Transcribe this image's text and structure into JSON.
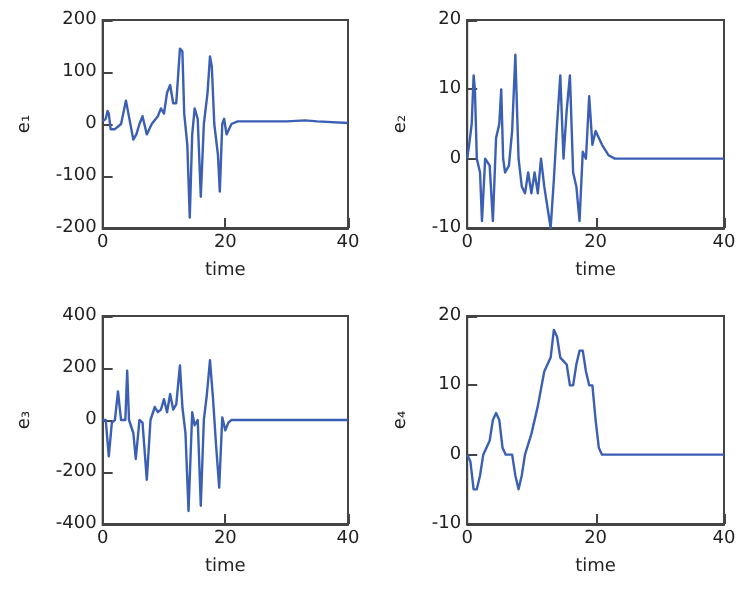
{
  "chart_data": [
    {
      "type": "line",
      "xlabel": "time",
      "ylabel": "e₁",
      "xlim": [
        0,
        40
      ],
      "xticks": [
        0,
        20,
        40
      ],
      "ylim": [
        -200,
        200
      ],
      "yticks": [
        -200,
        -100,
        0,
        100,
        200
      ],
      "marker": "none",
      "grid": false,
      "x": [
        0,
        0.5,
        0.8,
        1,
        1.3,
        2,
        3,
        3.8,
        4.2,
        5,
        5.5,
        6,
        6.5,
        7.2,
        8,
        9,
        9.5,
        10,
        10.5,
        11,
        11.5,
        12,
        12.6,
        13,
        13.3,
        13.8,
        14.2,
        14.6,
        15,
        15.5,
        16,
        16.5,
        17.1,
        17.5,
        17.8,
        18.2,
        18.8,
        19.1,
        19.5,
        19.8,
        20.2,
        20.6,
        21,
        22,
        25,
        30,
        33,
        35,
        40
      ],
      "series": [
        {
          "color": "#3a5fb5",
          "values": [
            5,
            10,
            25,
            20,
            -10,
            -10,
            0,
            45,
            20,
            -30,
            -20,
            0,
            15,
            -20,
            0,
            15,
            30,
            20,
            60,
            75,
            40,
            40,
            145,
            140,
            20,
            -40,
            -180,
            -20,
            30,
            10,
            -140,
            0,
            60,
            130,
            110,
            0,
            -60,
            -130,
            0,
            10,
            -20,
            -10,
            0,
            5,
            5,
            5,
            7,
            5,
            2
          ]
        }
      ]
    },
    {
      "type": "line",
      "xlabel": "time",
      "ylabel": "e₂",
      "xlim": [
        0,
        40
      ],
      "xticks": [
        0,
        20,
        40
      ],
      "ylim": [
        -10,
        20
      ],
      "yticks": [
        -10,
        0,
        10,
        20
      ],
      "marker": "none",
      "grid": false,
      "x": [
        0,
        0.3,
        0.7,
        1,
        1.2,
        1.5,
        2,
        2.3,
        2.8,
        3,
        3.5,
        4,
        4.5,
        5,
        5.3,
        5.6,
        5.9,
        6.5,
        7,
        7.5,
        8,
        8.5,
        9,
        9.5,
        10,
        10.5,
        11,
        11.5,
        12,
        12.5,
        13,
        13.5,
        14,
        14.5,
        15,
        15.5,
        16,
        16.5,
        17,
        17.5,
        18,
        18.5,
        19,
        19.5,
        20,
        21,
        22,
        23,
        40
      ],
      "series": [
        {
          "color": "#3a5fb5",
          "values": [
            0,
            2,
            5,
            12,
            10,
            0,
            -2,
            -9,
            0,
            0,
            -1,
            -9,
            3,
            5,
            10,
            0,
            -2,
            -1,
            4,
            15,
            0,
            -4,
            -5,
            -2,
            -5,
            -2,
            -5,
            0,
            -4,
            -7,
            -10,
            -3,
            5,
            12,
            0,
            7,
            12,
            -2,
            -4,
            -9,
            1,
            0,
            9,
            2,
            4,
            2,
            0.5,
            0,
            0
          ]
        }
      ]
    },
    {
      "type": "line",
      "xlabel": "time",
      "ylabel": "e₃",
      "xlim": [
        0,
        40
      ],
      "xticks": [
        0,
        20,
        40
      ],
      "ylim": [
        -400,
        400
      ],
      "yticks": [
        -400,
        -200,
        0,
        200,
        400
      ],
      "marker": "none",
      "grid": false,
      "x": [
        0,
        0.5,
        1,
        1.5,
        2,
        2.5,
        3,
        3.7,
        4,
        4.3,
        5,
        5.4,
        6,
        6.5,
        7.2,
        7.8,
        8.5,
        9,
        9.5,
        10,
        10.5,
        11,
        11.5,
        12,
        12.6,
        13,
        13.5,
        14,
        14.6,
        15,
        15.5,
        16,
        16.5,
        17,
        17.5,
        18,
        18.5,
        19,
        19.5,
        20,
        20.5,
        21,
        40
      ],
      "series": [
        {
          "color": "#3a5fb5",
          "values": [
            0,
            0,
            -140,
            -10,
            0,
            110,
            0,
            0,
            190,
            0,
            -50,
            -150,
            0,
            -10,
            -230,
            0,
            50,
            30,
            40,
            80,
            30,
            100,
            40,
            60,
            210,
            50,
            -50,
            -350,
            30,
            -20,
            0,
            -330,
            0,
            100,
            230,
            80,
            -100,
            -260,
            10,
            -40,
            -10,
            0,
            0
          ]
        }
      ]
    },
    {
      "type": "line",
      "xlabel": "time",
      "ylabel": "e₄",
      "xlim": [
        0,
        40
      ],
      "xticks": [
        0,
        20,
        40
      ],
      "ylim": [
        -10,
        20
      ],
      "yticks": [
        -10,
        0,
        10,
        20
      ],
      "marker": "none",
      "grid": false,
      "x": [
        0,
        0.5,
        1,
        1.5,
        2,
        2.5,
        3,
        3.5,
        4,
        4.5,
        5,
        5.5,
        6,
        7,
        7.5,
        8,
        8.5,
        9,
        10,
        11,
        12,
        13,
        13.5,
        14,
        14.5,
        15,
        15.5,
        16,
        16.5,
        17,
        17.5,
        18,
        18.5,
        19,
        19.5,
        20,
        20.5,
        21,
        40
      ],
      "series": [
        {
          "color": "#3a5fb5",
          "values": [
            0,
            -1,
            -5,
            -5,
            -3,
            0,
            1,
            2,
            5,
            6,
            5,
            1,
            0,
            0,
            -3,
            -5,
            -3,
            0,
            3,
            7,
            12,
            14,
            18,
            17,
            14,
            13.5,
            13,
            10,
            10,
            13,
            15,
            15,
            12,
            10,
            10,
            5,
            1,
            0,
            0
          ]
        }
      ]
    }
  ]
}
